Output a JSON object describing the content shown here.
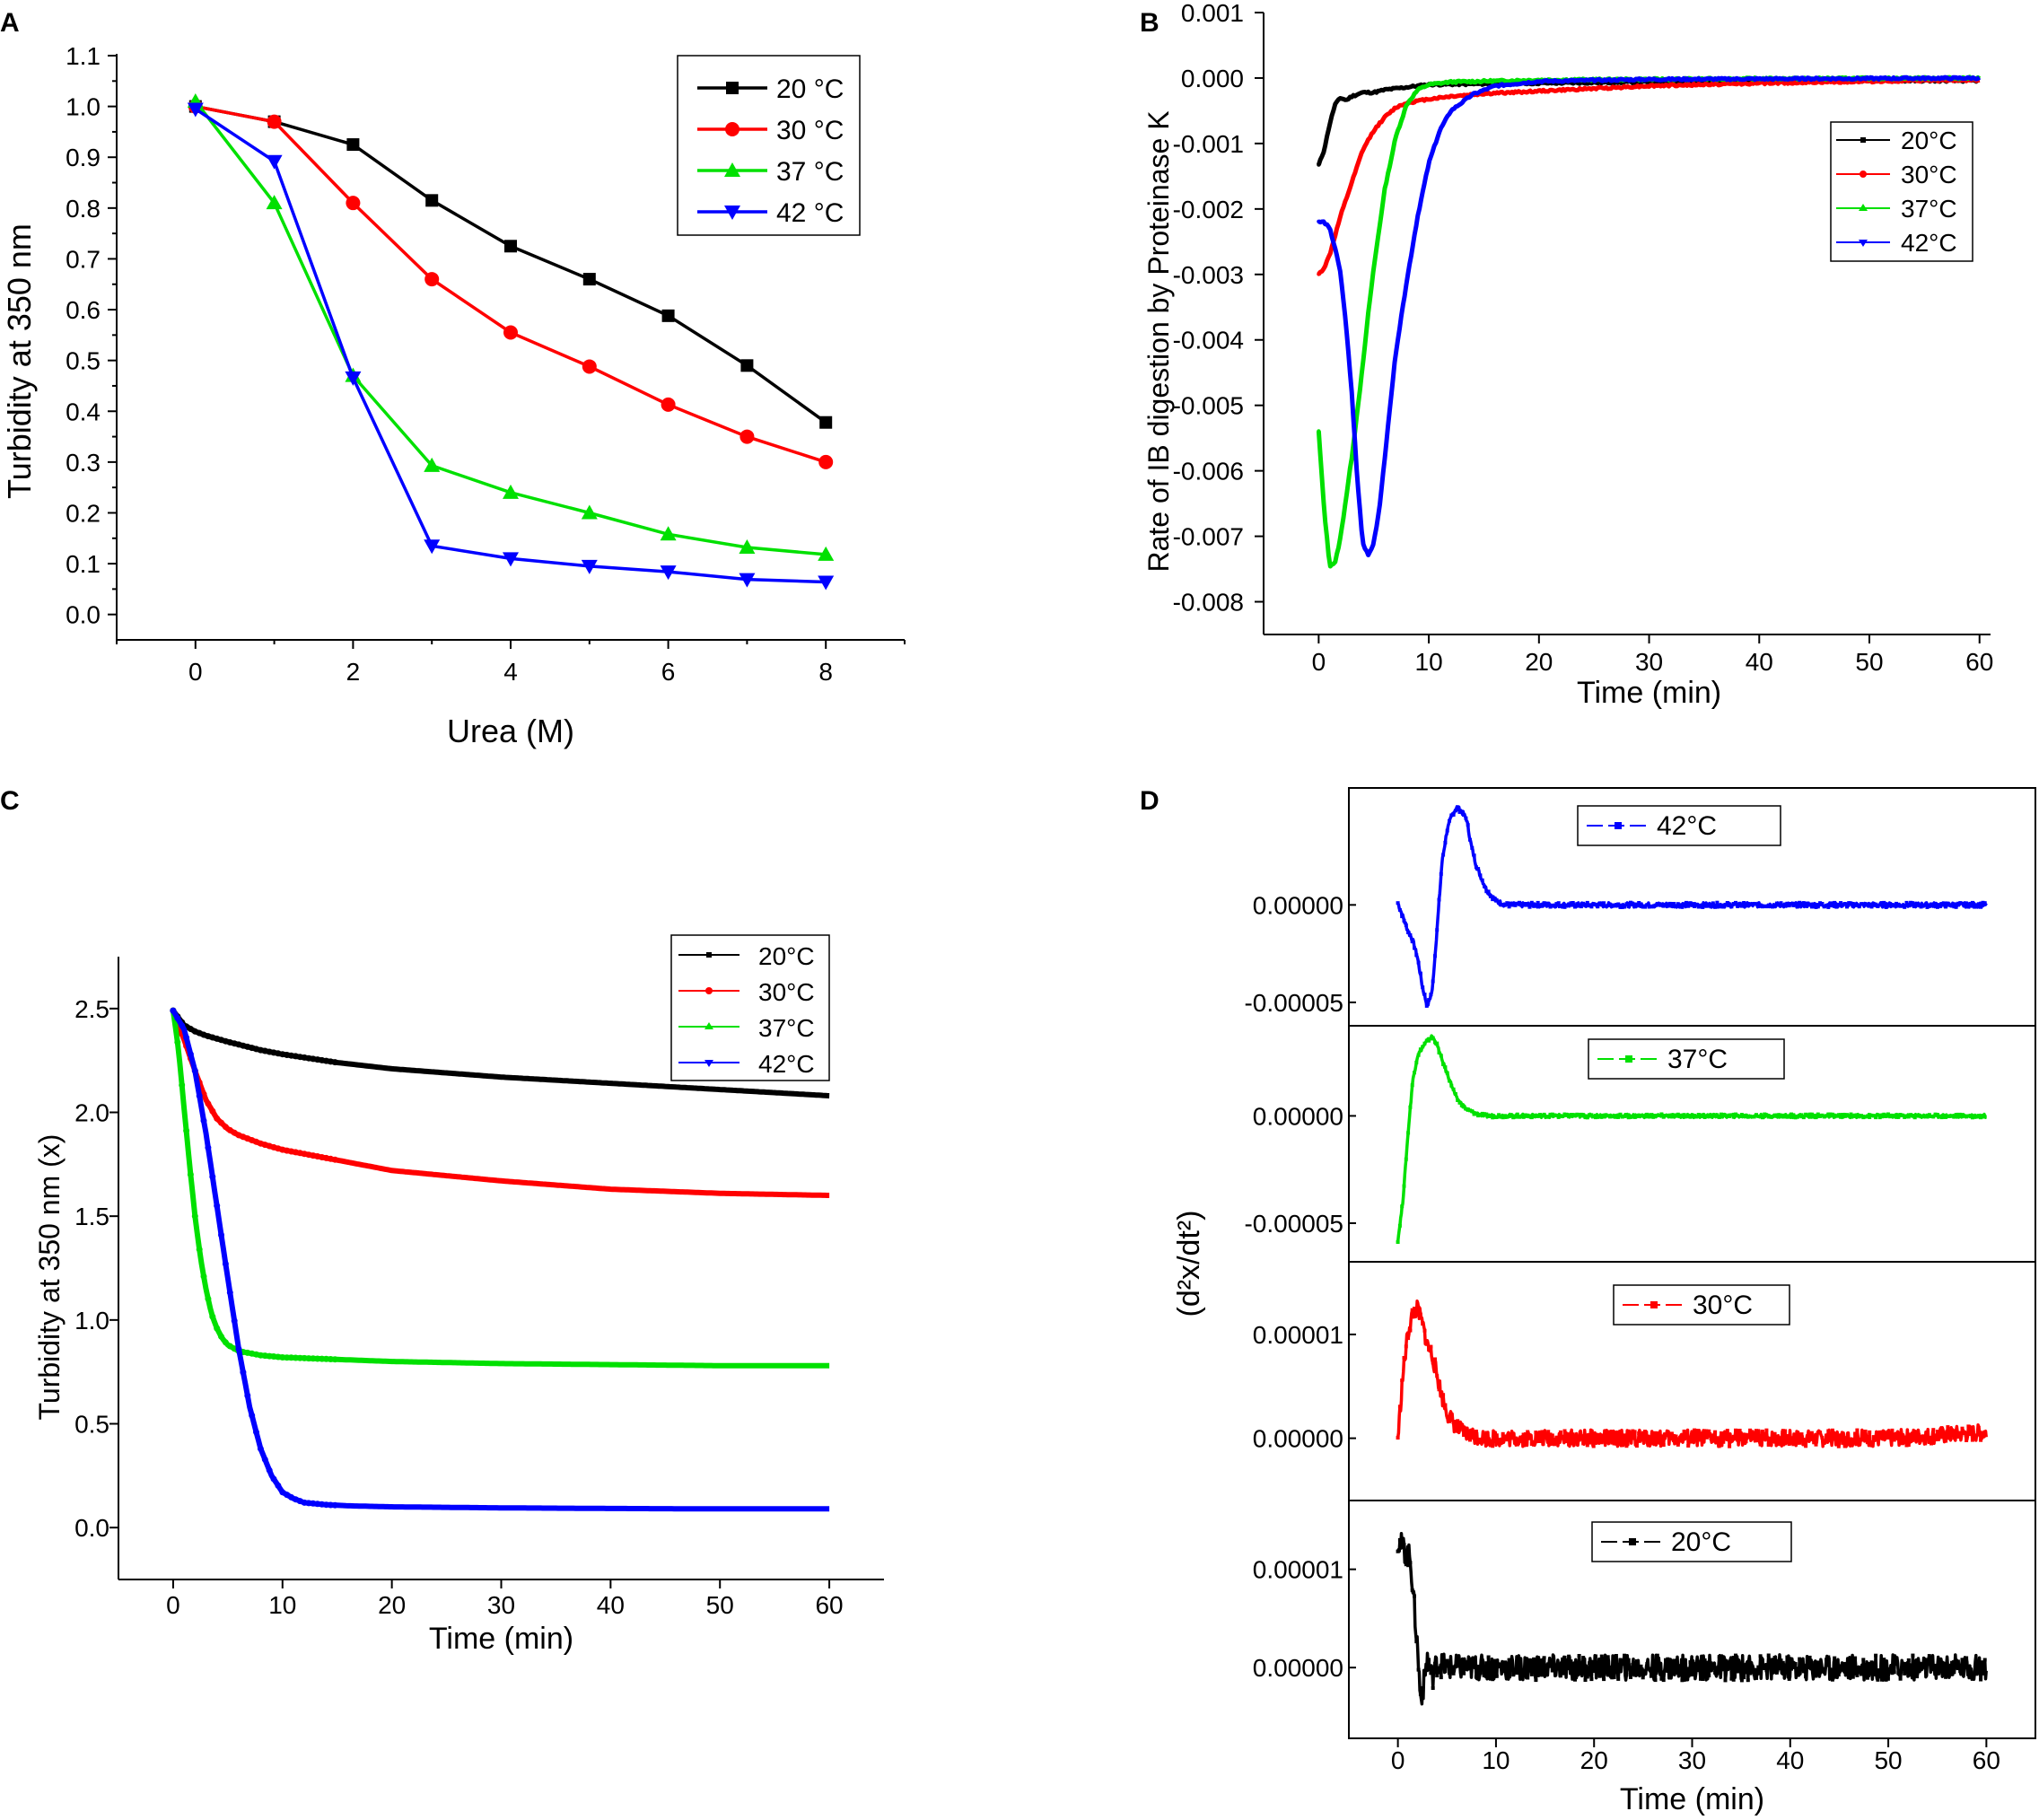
{
  "chart_data": [
    {
      "id": "A",
      "panel_label": "A",
      "type": "line",
      "xlabel": "Urea (M)",
      "ylabel": "Turbidity at 350 nm",
      "xlim": [
        -1,
        9
      ],
      "ylim": [
        -0.05,
        1.1
      ],
      "xticks": [
        0,
        2,
        4,
        6,
        8
      ],
      "xtick_labels": [
        "0",
        "2",
        "4",
        "6",
        "8"
      ],
      "yticks": [
        0.0,
        0.1,
        0.2,
        0.3,
        0.4,
        0.5,
        0.6,
        0.7,
        0.8,
        0.9,
        1.0,
        1.1
      ],
      "ytick_labels": [
        "0.0",
        "0.1",
        "0.2",
        "0.3",
        "0.4",
        "0.5",
        "0.6",
        "0.7",
        "0.8",
        "0.9",
        "1.0",
        "1.1"
      ],
      "x": [
        0,
        1,
        2,
        3,
        4,
        5,
        6,
        7,
        8
      ],
      "series": [
        {
          "name": "20 °C",
          "color": "#000000",
          "marker": "square",
          "values": [
            1.0,
            0.97,
            0.925,
            0.815,
            0.725,
            0.66,
            0.588,
            0.49,
            0.378
          ]
        },
        {
          "name": "30 °C",
          "color": "#ff0000",
          "marker": "circle",
          "values": [
            1.0,
            0.97,
            0.81,
            0.66,
            0.555,
            0.488,
            0.413,
            0.35,
            0.3
          ]
        },
        {
          "name": "37 °C",
          "color": "#00e000",
          "marker": "triangle-up",
          "values": [
            1.01,
            0.81,
            0.47,
            0.293,
            0.24,
            0.2,
            0.158,
            0.132,
            0.118
          ]
        },
        {
          "name": "42 °C",
          "color": "#0000ff",
          "marker": "triangle-down",
          "values": [
            0.995,
            0.892,
            0.466,
            0.135,
            0.11,
            0.095,
            0.084,
            0.069,
            0.064
          ]
        }
      ],
      "legend_position": "top-right"
    },
    {
      "id": "B",
      "panel_label": "B",
      "type": "line",
      "xlabel": "Time (min)",
      "ylabel": "Rate of IB digestion by Proteinase K",
      "xlim": [
        -5,
        61
      ],
      "ylim": [
        -0.0085,
        0.001
      ],
      "xticks": [
        0,
        10,
        20,
        30,
        40,
        50,
        60
      ],
      "xtick_labels": [
        "0",
        "10",
        "20",
        "30",
        "40",
        "50",
        "60"
      ],
      "yticks": [
        0.001,
        0.0,
        -0.001,
        -0.002,
        -0.003,
        -0.004,
        -0.005,
        -0.006,
        -0.007,
        -0.008
      ],
      "ytick_labels": [
        "0.001",
        "0.000",
        "-0.001",
        "-0.002",
        "-0.003",
        "-0.004",
        "-0.005",
        "-0.006",
        "-0.007",
        "-0.008"
      ],
      "series": [
        {
          "name": "20°C",
          "color": "#000000",
          "x": [
            0,
            0.5,
            1,
            1.5,
            2,
            2.5,
            3,
            4,
            5,
            6,
            8,
            10,
            20,
            40,
            60
          ],
          "values": [
            -0.00133,
            -0.0011,
            -0.0007,
            -0.0004,
            -0.0003,
            -0.00034,
            -0.00028,
            -0.00022,
            -0.00022,
            -0.00018,
            -0.00014,
            -0.0001,
            -8e-05,
            -4e-05,
            -4e-05
          ]
        },
        {
          "name": "30°C",
          "color": "#ff0000",
          "x": [
            0,
            0.5,
            1,
            1.5,
            2,
            3,
            4,
            5,
            6,
            7,
            8,
            10,
            12,
            15,
            20,
            30,
            40,
            50,
            60
          ],
          "values": [
            -0.003,
            -0.0029,
            -0.0027,
            -0.0024,
            -0.0021,
            -0.0016,
            -0.0011,
            -0.0008,
            -0.0006,
            -0.00045,
            -0.00038,
            -0.00032,
            -0.00028,
            -0.00024,
            -0.0002,
            -0.00012,
            -8e-05,
            -5e-05,
            -3e-05
          ]
        },
        {
          "name": "37°C",
          "color": "#00e000",
          "x": [
            0,
            0.5,
            1,
            1.5,
            2,
            2.5,
            3,
            3.5,
            4,
            4.5,
            5,
            6,
            7,
            8,
            9,
            10,
            12,
            20,
            40,
            60
          ],
          "values": [
            -0.0054,
            -0.0066,
            -0.00745,
            -0.0074,
            -0.007,
            -0.0064,
            -0.0058,
            -0.0051,
            -0.0044,
            -0.0036,
            -0.0029,
            -0.0017,
            -0.0009,
            -0.0004,
            -0.00018,
            -0.0001,
            -6e-05,
            -3e-05,
            -1e-05,
            0.0
          ]
        },
        {
          "name": "42°C",
          "color": "#0000ff",
          "x": [
            0,
            0.5,
            1,
            1.5,
            2,
            2.5,
            3,
            3.5,
            4,
            4.5,
            5,
            5.5,
            6,
            6.5,
            7,
            8,
            9,
            10,
            11,
            12,
            14,
            16,
            20,
            30,
            60
          ],
          "values": [
            -0.0022,
            -0.0022,
            -0.0023,
            -0.0026,
            -0.003,
            -0.0038,
            -0.0048,
            -0.0061,
            -0.0071,
            -0.0073,
            -0.0071,
            -0.0066,
            -0.0058,
            -0.005,
            -0.0042,
            -0.0031,
            -0.0021,
            -0.0013,
            -0.0008,
            -0.0005,
            -0.00025,
            -0.00012,
            -5e-05,
            -2e-05,
            0.0
          ]
        }
      ],
      "legend_position": "top-right"
    },
    {
      "id": "C",
      "panel_label": "C",
      "type": "line",
      "xlabel": "Time (min)",
      "ylabel": "Turbidity at 350 nm (x)",
      "xlim": [
        -5,
        65
      ],
      "ylim": [
        -0.25,
        2.75
      ],
      "xticks": [
        0,
        10,
        20,
        30,
        40,
        50,
        60
      ],
      "xtick_labels": [
        "0",
        "10",
        "20",
        "30",
        "40",
        "50",
        "60"
      ],
      "yticks": [
        0.0,
        0.5,
        1.0,
        1.5,
        2.0,
        2.5
      ],
      "ytick_labels": [
        "0.0",
        "0.5",
        "1.0",
        "1.5",
        "2.0",
        "2.5"
      ],
      "series": [
        {
          "name": "20°C",
          "color": "#000000",
          "x": [
            0,
            1,
            2,
            3,
            5,
            8,
            10,
            15,
            20,
            30,
            40,
            50,
            60
          ],
          "values": [
            2.49,
            2.42,
            2.39,
            2.37,
            2.34,
            2.3,
            2.28,
            2.24,
            2.21,
            2.17,
            2.14,
            2.11,
            2.08
          ]
        },
        {
          "name": "30°C",
          "color": "#ff0000",
          "x": [
            0,
            1,
            2,
            3,
            4,
            5,
            6,
            8,
            10,
            15,
            20,
            30,
            40,
            50,
            60
          ],
          "values": [
            2.49,
            2.35,
            2.2,
            2.06,
            1.97,
            1.92,
            1.89,
            1.85,
            1.82,
            1.77,
            1.72,
            1.67,
            1.63,
            1.61,
            1.6
          ]
        },
        {
          "name": "37°C",
          "color": "#00e000",
          "x": [
            0,
            0.5,
            1,
            1.5,
            2,
            2.5,
            3,
            3.5,
            4,
            4.5,
            5,
            6,
            7,
            8,
            10,
            15,
            20,
            30,
            40,
            50,
            60
          ],
          "values": [
            2.49,
            2.3,
            2.02,
            1.75,
            1.5,
            1.3,
            1.15,
            1.03,
            0.96,
            0.91,
            0.88,
            0.85,
            0.84,
            0.83,
            0.82,
            0.81,
            0.8,
            0.79,
            0.785,
            0.78,
            0.78
          ]
        },
        {
          "name": "42°C",
          "color": "#0000ff",
          "x": [
            0,
            1,
            2,
            3,
            4,
            5,
            6,
            7,
            8,
            9,
            10,
            11,
            12,
            14,
            16,
            20,
            30,
            40,
            50,
            60
          ],
          "values": [
            2.49,
            2.4,
            2.2,
            1.9,
            1.55,
            1.2,
            0.86,
            0.58,
            0.38,
            0.25,
            0.17,
            0.14,
            0.12,
            0.11,
            0.105,
            0.1,
            0.095,
            0.092,
            0.09,
            0.09
          ]
        }
      ],
      "legend_position": "top-right"
    },
    {
      "id": "D",
      "panel_label": "D",
      "type": "line",
      "xlabel": "Time (min)",
      "ylabel": "(d²x/dt²)",
      "xlim": [
        -5,
        65
      ],
      "xticks": [
        0,
        10,
        20,
        30,
        40,
        50,
        60
      ],
      "xtick_labels": [
        "0",
        "10",
        "20",
        "30",
        "40",
        "50",
        "60"
      ],
      "stacked_panels": [
        {
          "name": "42°C",
          "color": "#0000ff",
          "ylim": [
            -6.2e-05,
            6e-05
          ],
          "yticks": [
            0.0,
            -5e-05
          ],
          "ytick_labels": [
            "0.00000",
            "-0.00005"
          ],
          "noise": 1.2e-06,
          "x": [
            0,
            0.5,
            1,
            1.5,
            2,
            2.5,
            3,
            3.5,
            4,
            4.5,
            5,
            5.5,
            6,
            6.5,
            7,
            7.5,
            8,
            9,
            10,
            11,
            12,
            15,
            20,
            30,
            40,
            50,
            60
          ],
          "values": [
            1e-06,
            -6e-06,
            -1.3e-05,
            -1.8e-05,
            -2.7e-05,
            -4.2e-05,
            -5.2e-05,
            -4.4e-05,
            -1.2e-05,
            2.2e-05,
            3.8e-05,
            4.6e-05,
            5e-05,
            4.8e-05,
            4.4e-05,
            3e-05,
            2e-05,
            8e-06,
            2e-06,
            0.0,
            0.0,
            0.0,
            0.0,
            0.0,
            0.0,
            0.0,
            0.0
          ]
        },
        {
          "name": "37°C",
          "color": "#00e000",
          "ylim": [
            -6.8e-05,
            4.2e-05
          ],
          "yticks": [
            0.0,
            -5e-05
          ],
          "ytick_labels": [
            "0.00000",
            "-0.00005"
          ],
          "noise": 8e-07,
          "x": [
            0,
            0.5,
            1,
            1.5,
            2,
            2.5,
            3,
            3.5,
            4,
            4.5,
            5,
            6,
            7,
            8,
            9,
            10,
            15,
            20,
            30,
            40,
            50,
            60
          ],
          "values": [
            -5.8e-05,
            -4e-05,
            -1e-05,
            1.6e-05,
            2.8e-05,
            3.2e-05,
            3.5e-05,
            3.7e-05,
            3.3e-05,
            2.6e-05,
            2e-05,
            8e-06,
            3e-06,
            1e-06,
            0.0,
            0.0,
            0.0,
            0.0,
            0.0,
            0.0,
            0.0,
            0.0
          ]
        },
        {
          "name": "30°C",
          "color": "#ff0000",
          "ylim": [
            -6e-06,
            1.7e-05
          ],
          "yticks": [
            1e-05,
            0.0
          ],
          "ytick_labels": [
            "0.00001",
            "0.00000"
          ],
          "noise": 8e-07,
          "x": [
            0,
            0.5,
            1,
            1.5,
            2,
            2.5,
            3,
            3.5,
            4,
            4.5,
            5,
            6,
            7,
            8,
            9,
            10,
            15,
            20,
            30,
            40,
            50,
            60
          ],
          "values": [
            0.0,
            6e-06,
            1e-05,
            1.2e-05,
            1.25e-05,
            1.1e-05,
            9e-06,
            8e-06,
            6e-06,
            4e-06,
            2.5e-06,
            1e-06,
            4e-07,
            2e-07,
            0.0,
            0.0,
            0.0,
            0.0,
            0.0,
            0.0,
            0.0,
            6e-07
          ]
        },
        {
          "name": "20°C",
          "color": "#000000",
          "ylim": [
            -7.2e-06,
            1.7e-05
          ],
          "yticks": [
            1e-05,
            0.0
          ],
          "ytick_labels": [
            "0.00001",
            "0.00000"
          ],
          "noise": 1.3e-06,
          "x": [
            0,
            0.3,
            0.6,
            1,
            1.3,
            1.6,
            2,
            2.3,
            2.6,
            3,
            3.5,
            4,
            5,
            6,
            8,
            10,
            20,
            30,
            40,
            50,
            60
          ],
          "values": [
            1.3e-05,
            1.25e-05,
            1.2e-05,
            1.15e-05,
            1.1e-05,
            7e-06,
            2e-06,
            -3e-06,
            -2e-06,
            1e-06,
            -1e-06,
            5e-07,
            0.0,
            0.0,
            0.0,
            0.0,
            0.0,
            0.0,
            0.0,
            0.0,
            0.0
          ]
        }
      ]
    }
  ]
}
